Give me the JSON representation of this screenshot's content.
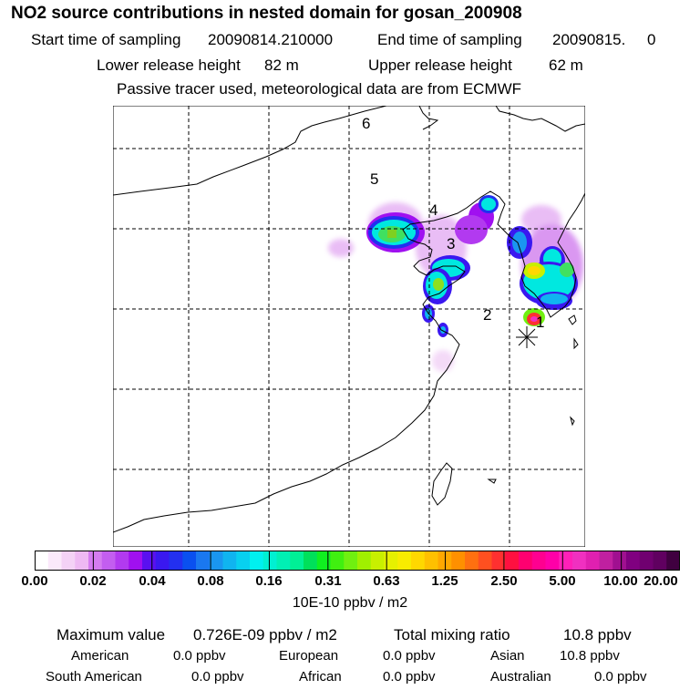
{
  "header": {
    "title": "NO2 source contributions in nested domain for gosan_200908",
    "start_label": "Start time of sampling",
    "start_value": "20090814.210000",
    "end_label": "End time of sampling",
    "end_value": "20090815.     0",
    "lower_label": "Lower release height",
    "lower_value": "82 m",
    "upper_label": "Upper release height",
    "upper_value": "62 m",
    "note": "Passive tracer used, meteorological data are from ECMWF"
  },
  "map": {
    "region_numbers": [
      "1",
      "2",
      "3",
      "4",
      "5",
      "6"
    ],
    "receptor_icon": "asterisk-marker"
  },
  "colorbar": {
    "ticks": [
      "0.00",
      "0.02",
      "0.04",
      "0.08",
      "0.16",
      "0.31",
      "0.63",
      "1.25",
      "2.50",
      "5.00",
      "10.00",
      "20.00"
    ],
    "unit": "10E-10 ppbv / m2",
    "colors": [
      "#ffffff",
      "#fbe9fb",
      "#f4d2f6",
      "#eeb9f3",
      "#d57cf0",
      "#c35ef0",
      "#b23af0",
      "#a010f0",
      "#5a10f0",
      "#3a18f0",
      "#2330f0",
      "#0a50f0",
      "#1a78f0",
      "#1a96f0",
      "#10b4f0",
      "#08d0f0",
      "#00f0f0",
      "#00f0d2",
      "#00f0b4",
      "#00f096",
      "#00e05a",
      "#10f020",
      "#40f010",
      "#70f010",
      "#a0f000",
      "#c8f000",
      "#e6f000",
      "#f8ec00",
      "#ffd800",
      "#ffc000",
      "#ffa800",
      "#ff9000",
      "#ff7010",
      "#ff5020",
      "#ff3030",
      "#ff1040",
      "#ff0070",
      "#ff0090",
      "#ff00a8",
      "#ff20b8",
      "#f030c0",
      "#e020b0",
      "#c020a0",
      "#a01090",
      "#800080",
      "#700070",
      "#600060",
      "#400040"
    ]
  },
  "stats": {
    "max_label": "Maximum value",
    "max_value": "0.726E-09 ppbv / m2",
    "total_label": "Total mixing ratio",
    "total_value": "10.8 ppbv",
    "regions": [
      {
        "name": "American",
        "value": "0.0 ppbv"
      },
      {
        "name": "European",
        "value": "0.0 ppbv"
      },
      {
        "name": "Asian",
        "value": "10.8 ppbv"
      },
      {
        "name": "South American",
        "value": "0.0 ppbv"
      },
      {
        "name": "African",
        "value": "0.0 ppbv"
      },
      {
        "name": "Australian",
        "value": "0.0 ppbv"
      }
    ]
  }
}
